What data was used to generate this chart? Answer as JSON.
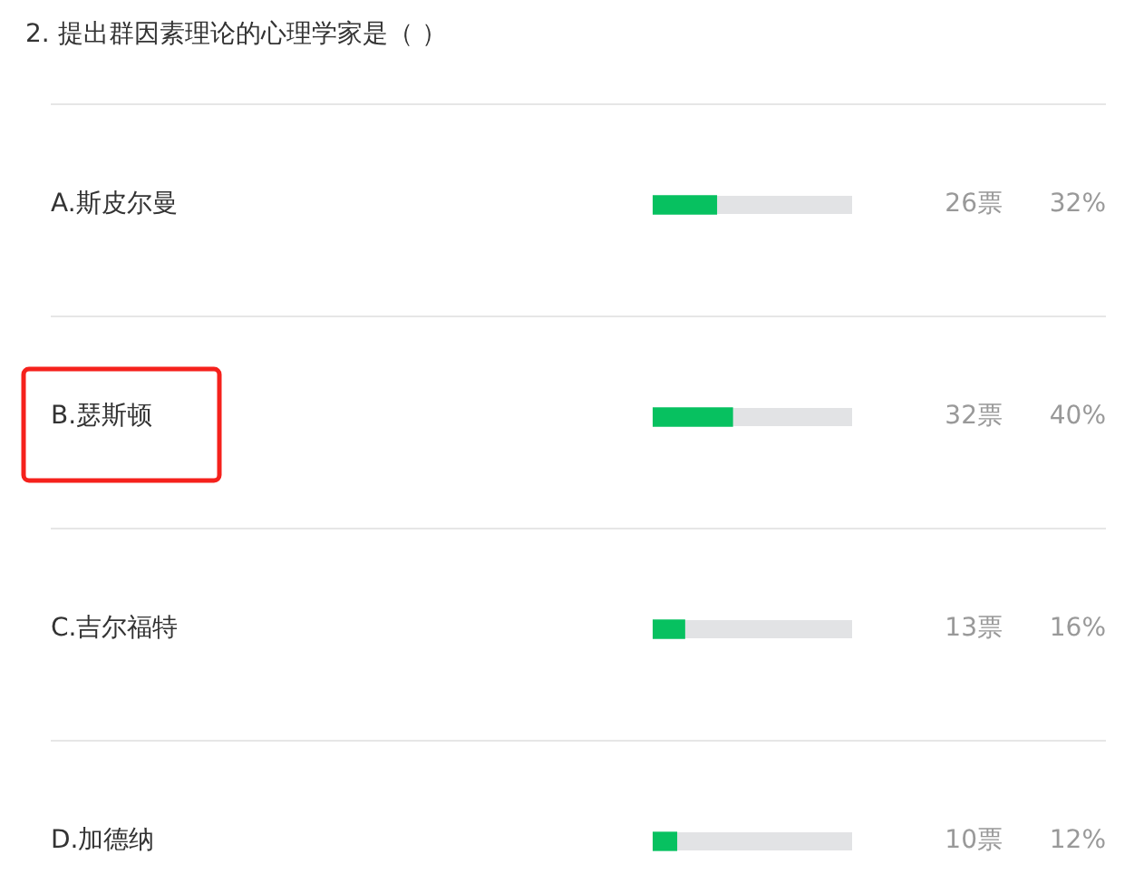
{
  "chart_data": {
    "type": "bar",
    "orientation": "horizontal",
    "title": "2. 提出群因素理论的心理学家是（ ）",
    "categories": [
      "A.斯皮尔曼",
      "B.瑟斯顿",
      "C.吉尔福特",
      "D.加德纳"
    ],
    "values": [
      32,
      40,
      16,
      12
    ],
    "value_labels": [
      "32%",
      "40%",
      "16%",
      "12%"
    ],
    "color": "#07c160",
    "xlim": [
      0,
      100
    ],
    "tick_labels": "y",
    "grid": "y",
    "annotations": [
      "26票",
      "32票",
      "13票",
      "10票"
    ]
  }
}
